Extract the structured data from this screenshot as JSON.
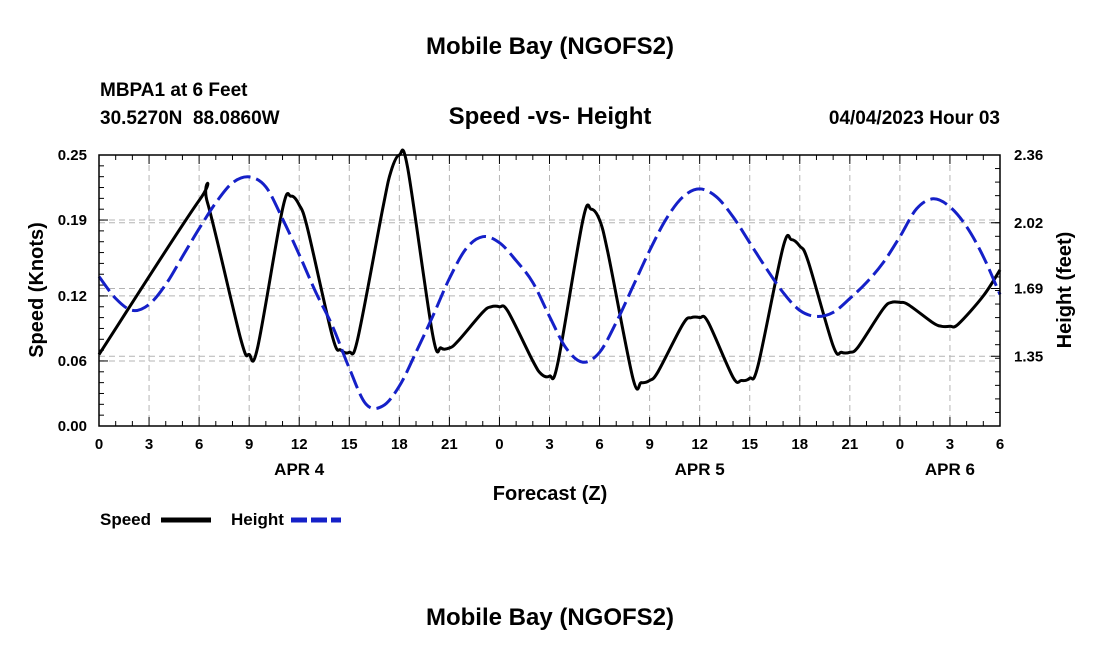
{
  "page": {
    "top_title": "Mobile Bay (NGOFS2)",
    "bottom_title": "Mobile Bay (NGOFS2)",
    "station_line1": "MBPA1 at 6 Feet",
    "station_line2": "30.5270N  88.0860W",
    "chart_title": "Speed -vs- Height",
    "datetime": "04/04/2023 Hour 03"
  },
  "chart_data": {
    "type": "line",
    "title": "Speed -vs- Height",
    "xlabel": "Forecast (Z)",
    "ylabel": "Speed (Knots)",
    "y2label": "Height (feet)",
    "x_range_hours": [
      0,
      54
    ],
    "x_tick_labels": [
      "0",
      "3",
      "6",
      "9",
      "12",
      "15",
      "18",
      "21",
      "0",
      "3",
      "6",
      "9",
      "12",
      "15",
      "18",
      "21",
      "0",
      "3",
      "6"
    ],
    "date_labels": [
      {
        "label": "APR 4",
        "at_hour": 12
      },
      {
        "label": "APR 5",
        "at_hour": 36
      },
      {
        "label": "APR 6",
        "at_hour": 51
      }
    ],
    "ylim": [
      0,
      0.25
    ],
    "y_ticks": [
      "0.00",
      "0.06",
      "0.12",
      "0.19",
      "0.25"
    ],
    "y2lim": [
      1.0,
      2.36
    ],
    "y2_ticks": [
      "1.35",
      "1.69",
      "2.02",
      "2.36"
    ],
    "grid": true,
    "legend_position": "bottom-left",
    "series": [
      {
        "name": "Speed",
        "color": "#000000",
        "axis": "left",
        "style": "solid",
        "x": [
          0,
          6,
          6.5,
          8.5,
          9,
          9.5,
          11,
          11.5,
          12,
          12.5,
          14,
          14.5,
          15,
          15.5,
          17,
          17.5,
          18,
          18.5,
          20,
          20.5,
          21,
          21.5,
          23,
          23.5,
          24,
          24.5,
          26,
          26.5,
          27,
          27.5,
          29,
          29.5,
          30,
          30.5,
          32,
          32.5,
          33,
          33.5,
          35,
          35.5,
          36,
          36.5,
          38,
          38.5,
          39,
          39.5,
          41,
          41.5,
          42,
          42.5,
          44,
          44.5,
          45,
          45.5,
          47,
          47.5,
          48,
          48.5,
          50,
          50.5,
          51,
          51.5,
          53,
          54
        ],
        "values": [
          0.066,
          0.208,
          0.206,
          0.08,
          0.066,
          0.072,
          0.2,
          0.212,
          0.204,
          0.182,
          0.082,
          0.07,
          0.068,
          0.08,
          0.2,
          0.235,
          0.25,
          0.238,
          0.084,
          0.072,
          0.072,
          0.078,
          0.105,
          0.11,
          0.11,
          0.106,
          0.06,
          0.048,
          0.046,
          0.058,
          0.19,
          0.2,
          0.19,
          0.16,
          0.044,
          0.04,
          0.042,
          0.05,
          0.094,
          0.1,
          0.1,
          0.096,
          0.045,
          0.042,
          0.044,
          0.056,
          0.165,
          0.172,
          0.166,
          0.152,
          0.074,
          0.068,
          0.068,
          0.073,
          0.108,
          0.114,
          0.114,
          0.112,
          0.095,
          0.092,
          0.092,
          0.094,
          0.12,
          0.144
        ]
      },
      {
        "name": "Height",
        "color": "#1520c8",
        "axis": "right",
        "style": "dashed",
        "x": [
          0,
          1,
          2,
          3,
          4,
          5,
          6,
          7,
          8,
          9,
          10,
          11,
          12,
          13,
          14,
          15,
          16,
          17,
          18,
          19,
          20,
          21,
          22,
          23,
          24,
          25,
          26,
          27,
          28,
          29,
          30,
          31,
          32,
          33,
          34,
          35,
          36,
          37,
          38,
          39,
          40,
          41,
          42,
          43,
          44,
          45,
          46,
          47,
          48,
          49,
          50,
          51,
          52,
          53,
          54
        ],
        "values": [
          1.75,
          1.64,
          1.58,
          1.61,
          1.71,
          1.85,
          1.99,
          2.12,
          2.22,
          2.25,
          2.2,
          2.04,
          1.86,
          1.67,
          1.5,
          1.29,
          1.11,
          1.1,
          1.2,
          1.37,
          1.55,
          1.74,
          1.89,
          1.95,
          1.92,
          1.83,
          1.72,
          1.55,
          1.39,
          1.32,
          1.37,
          1.52,
          1.7,
          1.88,
          2.04,
          2.15,
          2.19,
          2.15,
          2.05,
          1.92,
          1.79,
          1.67,
          1.58,
          1.55,
          1.57,
          1.64,
          1.72,
          1.82,
          1.95,
          2.09,
          2.14,
          2.1,
          2.0,
          1.85,
          1.66
        ]
      }
    ]
  }
}
